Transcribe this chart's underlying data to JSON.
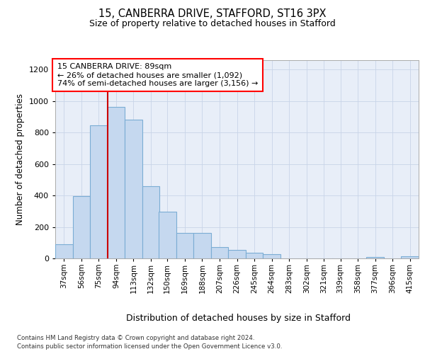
{
  "title_line1": "15, CANBERRA DRIVE, STAFFORD, ST16 3PX",
  "title_line2": "Size of property relative to detached houses in Stafford",
  "xlabel": "Distribution of detached houses by size in Stafford",
  "ylabel": "Number of detached properties",
  "categories": [
    "37sqm",
    "56sqm",
    "75sqm",
    "94sqm",
    "113sqm",
    "132sqm",
    "150sqm",
    "169sqm",
    "188sqm",
    "207sqm",
    "226sqm",
    "245sqm",
    "264sqm",
    "283sqm",
    "302sqm",
    "321sqm",
    "339sqm",
    "358sqm",
    "377sqm",
    "396sqm",
    "415sqm"
  ],
  "values": [
    90,
    395,
    845,
    965,
    880,
    460,
    295,
    160,
    160,
    70,
    52,
    35,
    28,
    0,
    0,
    0,
    0,
    0,
    10,
    0,
    12
  ],
  "bar_color": "#c5d8ef",
  "bar_edge_color": "#7badd4",
  "annotation_text": "15 CANBERRA DRIVE: 89sqm\n← 26% of detached houses are smaller (1,092)\n74% of semi-detached houses are larger (3,156) →",
  "vline_color": "#cc0000",
  "vline_x_data": 94,
  "ylim": [
    0,
    1260
  ],
  "yticks": [
    0,
    200,
    400,
    600,
    800,
    1000,
    1200
  ],
  "grid_color": "#c8d4e8",
  "bg_color": "#e8eef8",
  "footnote_line1": "Contains HM Land Registry data © Crown copyright and database right 2024.",
  "footnote_line2": "Contains public sector information licensed under the Open Government Licence v3.0.",
  "bin_starts": [
    37,
    56,
    75,
    94,
    113,
    132,
    150,
    169,
    188,
    207,
    226,
    245,
    264,
    283,
    302,
    321,
    339,
    358,
    377,
    396,
    415
  ],
  "bin_width": 19
}
